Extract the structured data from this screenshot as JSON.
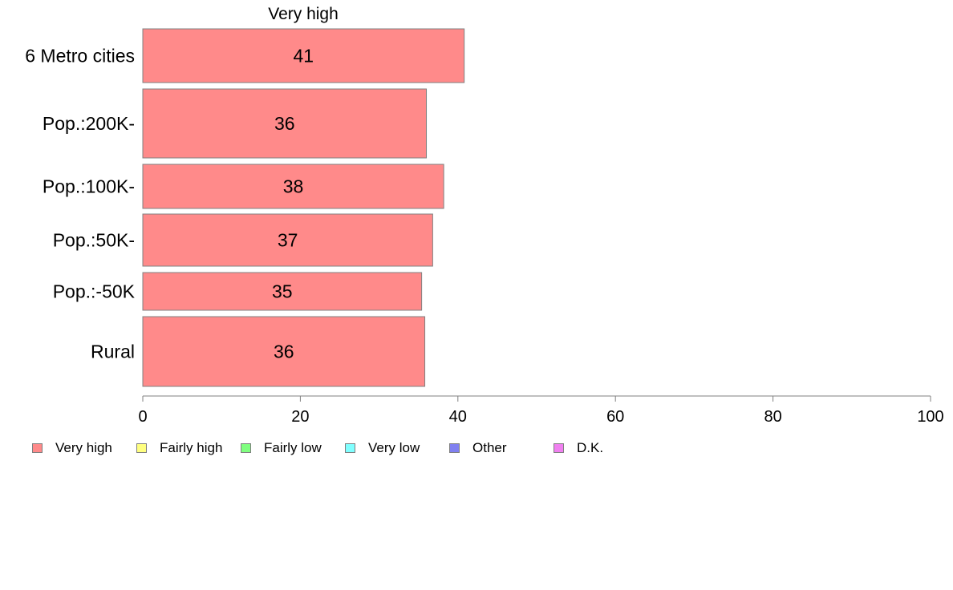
{
  "chart_data": {
    "type": "bar",
    "orientation": "horizontal",
    "title": "Very high",
    "categories": [
      "6 Metro cities",
      "Pop.:200K-",
      "Pop.:100K-",
      "Pop.:50K-",
      "Pop.:-50K",
      "Rural"
    ],
    "series": [
      {
        "name": "Very high",
        "color": "#ff8a8a",
        "values": [
          40.8,
          36.0,
          38.2,
          36.8,
          35.4,
          35.8
        ],
        "labels": [
          "41",
          "36",
          "38",
          "37",
          "35",
          "36"
        ]
      }
    ],
    "xlim": [
      0,
      100
    ],
    "xticks": [
      "0",
      "20",
      "40",
      "60",
      "80",
      "100"
    ],
    "grid": false,
    "legend": {
      "position": "bottom",
      "items": [
        {
          "label": "Very high",
          "color": "#ff8a8a"
        },
        {
          "label": "Fairly high",
          "color": "#ffff80"
        },
        {
          "label": "Fairly low",
          "color": "#80ff80"
        },
        {
          "label": "Very low",
          "color": "#80ffff"
        },
        {
          "label": "Other",
          "color": "#8080f0"
        },
        {
          "label": "D.K.",
          "color": "#f080f0"
        }
      ]
    }
  }
}
